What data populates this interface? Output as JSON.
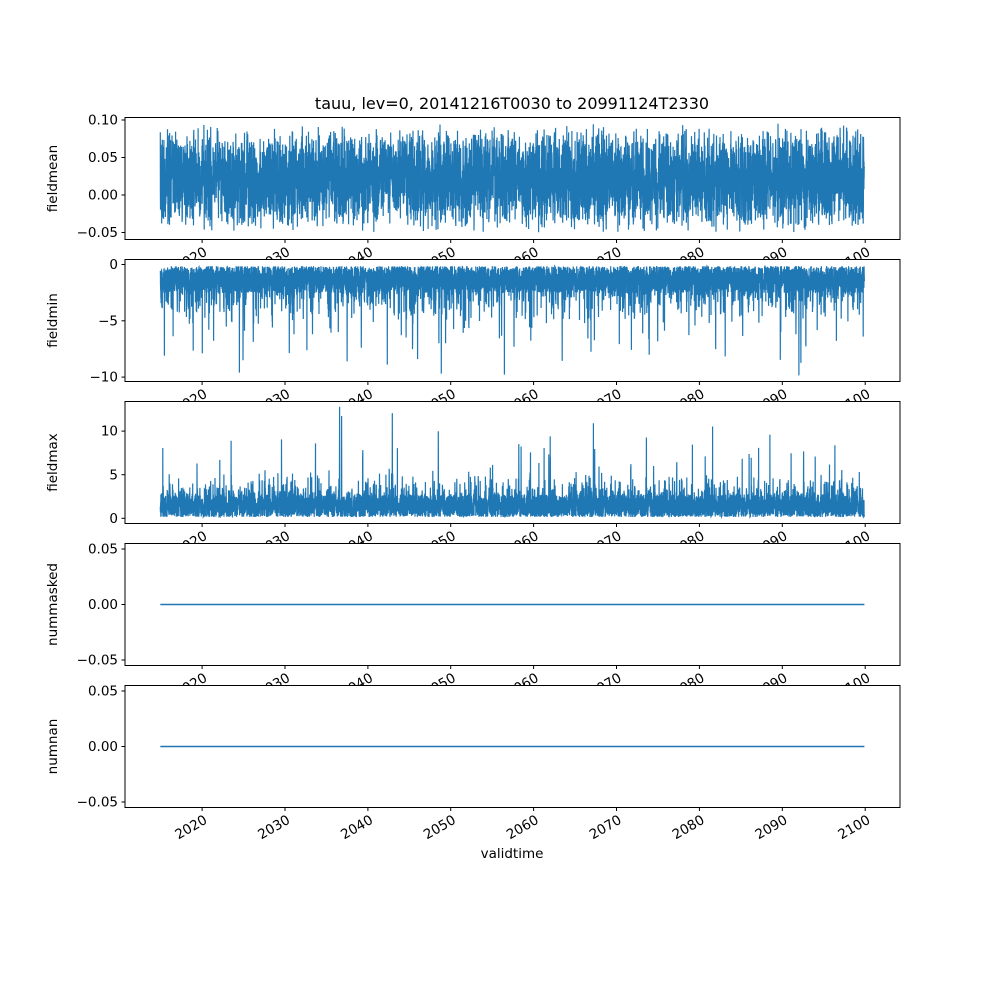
{
  "figure": {
    "title": "tauu, lev=0, 20141216T0030 to 20991124T2330",
    "xlabel": "validtime",
    "background": "#ffffff",
    "line_color": "#1f77b4",
    "frame_color": "#000000",
    "text_color": "#000000"
  },
  "chart_data": {
    "type": "line",
    "title": "tauu, lev=0, 20141216T0030 to 20991124T2330",
    "xlabel": "validtime",
    "legend": "none",
    "grid": false,
    "x": {
      "data_start": 2014.96,
      "data_end": 2099.9,
      "lim": [
        2010.7,
        2104.2
      ],
      "ticks": [
        2020,
        2030,
        2040,
        2050,
        2060,
        2070,
        2080,
        2090,
        2100
      ],
      "tick_labels": [
        "2020",
        "2030",
        "2040",
        "2050",
        "2060",
        "2070",
        "2080",
        "2090",
        "2100"
      ],
      "tick_rotation_deg": 30
    },
    "subplots": [
      {
        "ylabel": "fieldmean",
        "ylim": [
          -0.0594,
          0.1034
        ],
        "yticks": [
          0.1,
          0.05,
          0.0,
          -0.05
        ],
        "ytick_labels": [
          "0.10",
          "0.05",
          "0.00",
          "−0.05"
        ],
        "description": "dense noisy series oscillating between about -0.05 and 0.095",
        "series": {
          "kind": "band",
          "min": -0.052,
          "span": 0.148,
          "points": 6000,
          "seed": 42
        }
      },
      {
        "ylabel": "fieldmin",
        "ylim": [
          -10.39,
          0.44
        ],
        "yticks": [
          0,
          -5,
          -10
        ],
        "ytick_labels": [
          "0",
          "−5",
          "−10"
        ],
        "description": "dense band near 0 with downward spikes, most within -5, rare spikes to about -10",
        "series": {
          "kind": "spikes-down",
          "base": 0.15,
          "amp": 2.4,
          "pow": 1.2,
          "p1": 0.22,
          "amp1": 3.0,
          "p2": 0.015,
          "amp2_base": 2.2,
          "amp2": 4.6,
          "clamp": -9.9,
          "points": 6000,
          "seed": 7,
          "peaks": [
            {
              "x": 2024.5,
              "v": -9.6
            },
            {
              "x": 2092.0,
              "v": -9.85
            },
            {
              "x": 2037.5,
              "v": -8.6
            },
            {
              "x": 2046.0,
              "v": -8.4
            }
          ]
        }
      },
      {
        "ylabel": "fieldmax",
        "ylim": [
          -0.6,
          13.4
        ],
        "yticks": [
          10,
          5,
          0
        ],
        "ytick_labels": [
          "10",
          "5",
          "0"
        ],
        "description": "dense band between 0 and 3 with upward spikes to 5-7, rare spikes to about 12.8",
        "series": {
          "kind": "spikes-up",
          "base": 0.15,
          "amp": 2.6,
          "pow": 1.3,
          "p1": 0.22,
          "amp1": 2.8,
          "p2": 0.012,
          "amp2_base": 2.6,
          "amp2": 5.4,
          "clamp": 12.8,
          "points": 6000,
          "seed": 13,
          "peaks": [
            {
              "x": 2036.6,
              "v": 12.8
            },
            {
              "x": 2067.2,
              "v": 10.9
            },
            {
              "x": 2062.0,
              "v": 9.4
            },
            {
              "x": 2088.5,
              "v": 9.6
            },
            {
              "x": 2023.5,
              "v": 8.9
            }
          ]
        }
      },
      {
        "ylabel": "nummasked",
        "ylim": [
          -0.055,
          0.055
        ],
        "yticks": [
          0.05,
          0.0,
          -0.05
        ],
        "ytick_labels": [
          "0.05",
          "0.00",
          "−0.05"
        ],
        "description": "constant zero line",
        "series": {
          "kind": "constant",
          "value": 0,
          "points": 2
        }
      },
      {
        "ylabel": "numnan",
        "ylim": [
          -0.055,
          0.055
        ],
        "yticks": [
          0.05,
          0.0,
          -0.05
        ],
        "ytick_labels": [
          "0.05",
          "0.00",
          "−0.05"
        ],
        "description": "constant zero line",
        "series": {
          "kind": "constant",
          "value": 0,
          "points": 2
        }
      }
    ]
  }
}
